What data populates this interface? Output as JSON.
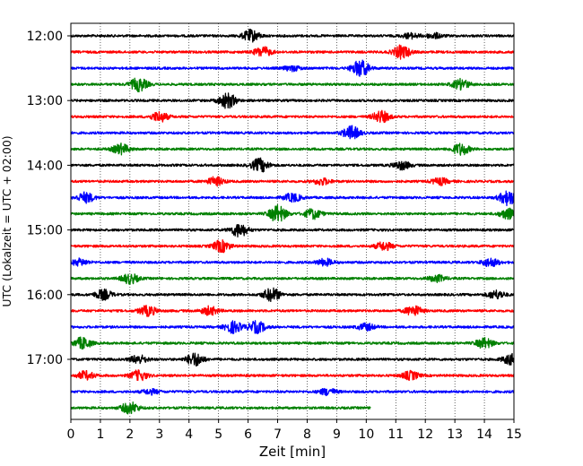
{
  "chart_data": {
    "type": "line",
    "title": "",
    "xlabel": "Zeit  [min]",
    "ylabel": "UTC (Lokalzeit = UTC + 02:00)",
    "xlim": [
      0,
      15
    ],
    "x_ticks": [
      0,
      1,
      2,
      3,
      4,
      5,
      6,
      7,
      8,
      9,
      10,
      11,
      12,
      13,
      14,
      15
    ],
    "x_tick_labels": [
      "0",
      "1",
      "2",
      "3",
      "4",
      "5",
      "6",
      "7",
      "8",
      "9",
      "10",
      "11",
      "12",
      "13",
      "14",
      "15"
    ],
    "y_tick_labels": [
      "12:00",
      "13:00",
      "14:00",
      "15:00",
      "16:00",
      "17:00"
    ],
    "grid": "vertical dotted at each minute",
    "color_cycle": [
      "#000000",
      "#ff0000",
      "#0000ff",
      "#008000"
    ],
    "traces": [
      {
        "start": "12:00",
        "color": "#000000",
        "events": [
          {
            "x": 6.1,
            "amp": 0.7
          },
          {
            "x": 11.5,
            "amp": 0.3
          },
          {
            "x": 12.3,
            "amp": 0.3
          }
        ]
      },
      {
        "start": "12:15",
        "color": "#ff0000",
        "events": [
          {
            "x": 6.5,
            "amp": 0.6
          },
          {
            "x": 11.2,
            "amp": 0.8
          }
        ]
      },
      {
        "start": "12:30",
        "color": "#0000ff",
        "events": [
          {
            "x": 7.5,
            "amp": 0.3
          },
          {
            "x": 9.8,
            "amp": 1.0
          }
        ]
      },
      {
        "start": "12:45",
        "color": "#008000",
        "events": [
          {
            "x": 2.3,
            "amp": 0.8
          },
          {
            "x": 13.2,
            "amp": 0.6
          }
        ]
      },
      {
        "start": "13:00",
        "color": "#000000",
        "events": [
          {
            "x": 5.3,
            "amp": 0.9
          }
        ]
      },
      {
        "start": "13:15",
        "color": "#ff0000",
        "events": [
          {
            "x": 3.0,
            "amp": 0.6
          },
          {
            "x": 10.5,
            "amp": 0.7
          }
        ]
      },
      {
        "start": "13:30",
        "color": "#0000ff",
        "events": [
          {
            "x": 9.5,
            "amp": 0.8
          }
        ]
      },
      {
        "start": "13:45",
        "color": "#008000",
        "events": [
          {
            "x": 1.7,
            "amp": 0.6
          },
          {
            "x": 13.2,
            "amp": 0.7
          }
        ]
      },
      {
        "start": "14:00",
        "color": "#000000",
        "events": [
          {
            "x": 6.4,
            "amp": 0.8
          },
          {
            "x": 11.2,
            "amp": 0.5
          }
        ]
      },
      {
        "start": "14:15",
        "color": "#ff0000",
        "events": [
          {
            "x": 4.9,
            "amp": 0.5
          },
          {
            "x": 8.5,
            "amp": 0.4
          },
          {
            "x": 12.5,
            "amp": 0.4
          }
        ]
      },
      {
        "start": "14:30",
        "color": "#0000ff",
        "events": [
          {
            "x": 0.5,
            "amp": 0.6
          },
          {
            "x": 7.5,
            "amp": 0.5
          },
          {
            "x": 14.8,
            "amp": 0.9
          }
        ]
      },
      {
        "start": "14:45",
        "color": "#008000",
        "events": [
          {
            "x": 7.0,
            "amp": 1.0
          },
          {
            "x": 8.2,
            "amp": 0.6
          },
          {
            "x": 14.8,
            "amp": 0.6
          }
        ]
      },
      {
        "start": "15:00",
        "color": "#000000",
        "events": [
          {
            "x": 5.7,
            "amp": 0.8
          }
        ]
      },
      {
        "start": "15:15",
        "color": "#ff0000",
        "events": [
          {
            "x": 5.1,
            "amp": 0.7
          },
          {
            "x": 10.6,
            "amp": 0.5
          }
        ]
      },
      {
        "start": "15:30",
        "color": "#0000ff",
        "events": [
          {
            "x": 0.3,
            "amp": 0.4
          },
          {
            "x": 8.6,
            "amp": 0.4
          },
          {
            "x": 14.2,
            "amp": 0.5
          }
        ]
      },
      {
        "start": "15:45",
        "color": "#008000",
        "events": [
          {
            "x": 2.0,
            "amp": 0.6
          },
          {
            "x": 12.4,
            "amp": 0.4
          }
        ]
      },
      {
        "start": "16:00",
        "color": "#000000",
        "events": [
          {
            "x": 1.1,
            "amp": 0.6
          },
          {
            "x": 6.8,
            "amp": 0.8
          },
          {
            "x": 14.4,
            "amp": 0.5
          }
        ]
      },
      {
        "start": "16:15",
        "color": "#ff0000",
        "events": [
          {
            "x": 2.6,
            "amp": 0.6
          },
          {
            "x": 4.7,
            "amp": 0.5
          },
          {
            "x": 11.6,
            "amp": 0.6
          }
        ]
      },
      {
        "start": "16:30",
        "color": "#0000ff",
        "events": [
          {
            "x": 5.5,
            "amp": 0.7
          },
          {
            "x": 6.3,
            "amp": 0.7
          },
          {
            "x": 10.0,
            "amp": 0.4
          }
        ]
      },
      {
        "start": "16:45",
        "color": "#008000",
        "events": [
          {
            "x": 0.4,
            "amp": 0.7
          },
          {
            "x": 14.0,
            "amp": 0.6
          }
        ]
      },
      {
        "start": "17:00",
        "color": "#000000",
        "events": [
          {
            "x": 2.3,
            "amp": 0.5
          },
          {
            "x": 4.2,
            "amp": 0.8
          },
          {
            "x": 14.9,
            "amp": 0.6
          }
        ]
      },
      {
        "start": "17:15",
        "color": "#ff0000",
        "events": [
          {
            "x": 0.5,
            "amp": 0.5
          },
          {
            "x": 2.3,
            "amp": 0.6
          },
          {
            "x": 11.5,
            "amp": 0.5
          }
        ]
      },
      {
        "start": "17:30",
        "color": "#0000ff",
        "events": [
          {
            "x": 2.7,
            "amp": 0.3
          },
          {
            "x": 8.7,
            "amp": 0.4
          }
        ]
      },
      {
        "start": "17:45",
        "color": "#008000",
        "events": [
          {
            "x": 2.0,
            "amp": 0.7
          }
        ],
        "x_end": 10.15
      }
    ]
  }
}
